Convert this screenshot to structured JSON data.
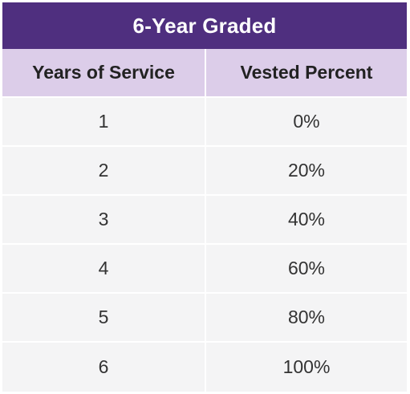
{
  "table": {
    "title": "6-Year Graded",
    "headers": [
      "Years of Service",
      "Vested Percent"
    ],
    "rows": [
      [
        "1",
        "0%"
      ],
      [
        "2",
        "20%"
      ],
      [
        "3",
        "40%"
      ],
      [
        "4",
        "60%"
      ],
      [
        "5",
        "80%"
      ],
      [
        "6",
        "100%"
      ]
    ]
  },
  "colors": {
    "title_background": "#4f2f7f",
    "header_background": "#dccde9",
    "row_background": "#f4f4f5"
  }
}
